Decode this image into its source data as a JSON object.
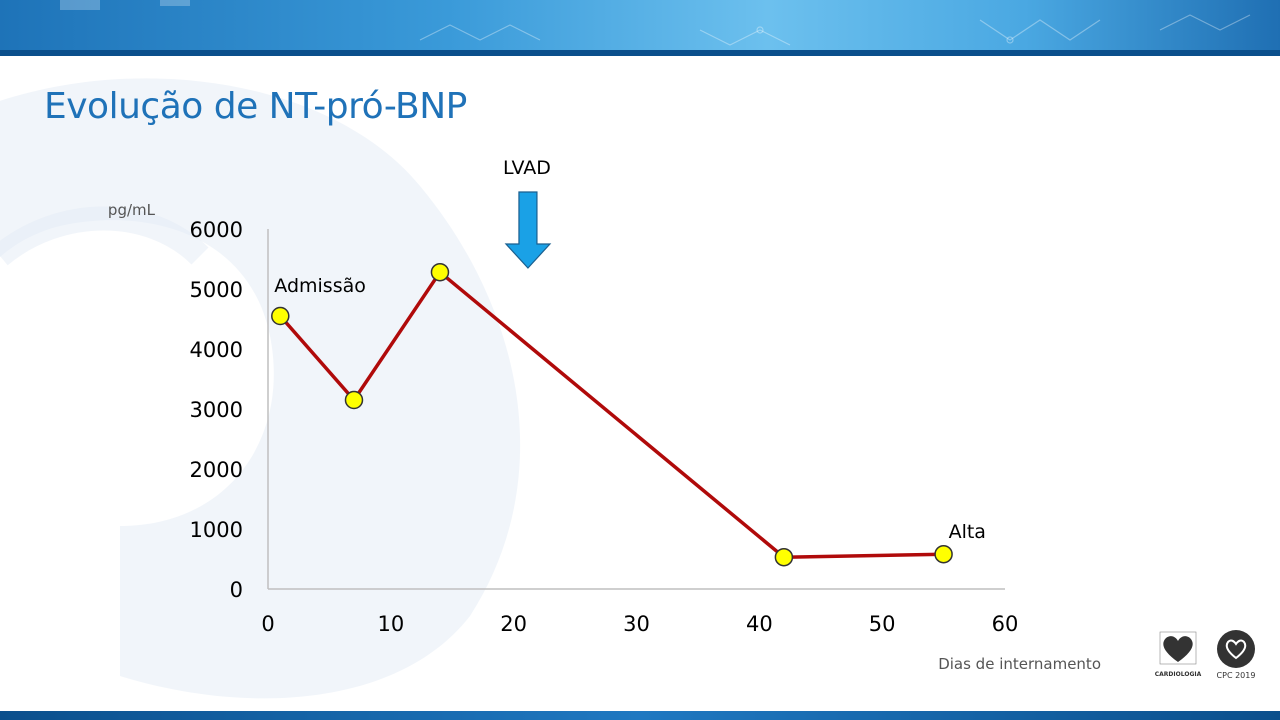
{
  "slide": {
    "title": "Evolução de NT-pró-BNP"
  },
  "colors": {
    "title": "#1f72b8",
    "line": "#b00a0a",
    "marker_fill": "#ffff00",
    "marker_stroke": "#333333",
    "arrow": "#1aa1e6",
    "axis": "#bfbfbf"
  },
  "chart_data": {
    "type": "line",
    "title": "",
    "xlabel": "Dias de internamento",
    "ylabel": "pg/mL",
    "xlim": [
      0,
      60
    ],
    "ylim": [
      0,
      6000
    ],
    "xticks": [
      0,
      10,
      20,
      30,
      40,
      50,
      60
    ],
    "yticks": [
      0,
      1000,
      2000,
      3000,
      4000,
      5000,
      6000
    ],
    "grid": false,
    "series": [
      {
        "x": [
          1,
          7,
          14,
          42,
          55
        ],
        "y": [
          4550,
          3150,
          5280,
          530,
          580
        ]
      }
    ],
    "annotations": [
      {
        "text": "Admissão",
        "x": 1,
        "y": 4550
      },
      {
        "text": "Alta",
        "x": 55,
        "y": 580
      }
    ],
    "event_marker": {
      "text": "LVAD",
      "x": 21,
      "icon": "down-arrow-icon"
    }
  },
  "logos": {
    "spc_caption": "CARDIOLOGIA",
    "cpc_caption": "CPC 2019"
  }
}
